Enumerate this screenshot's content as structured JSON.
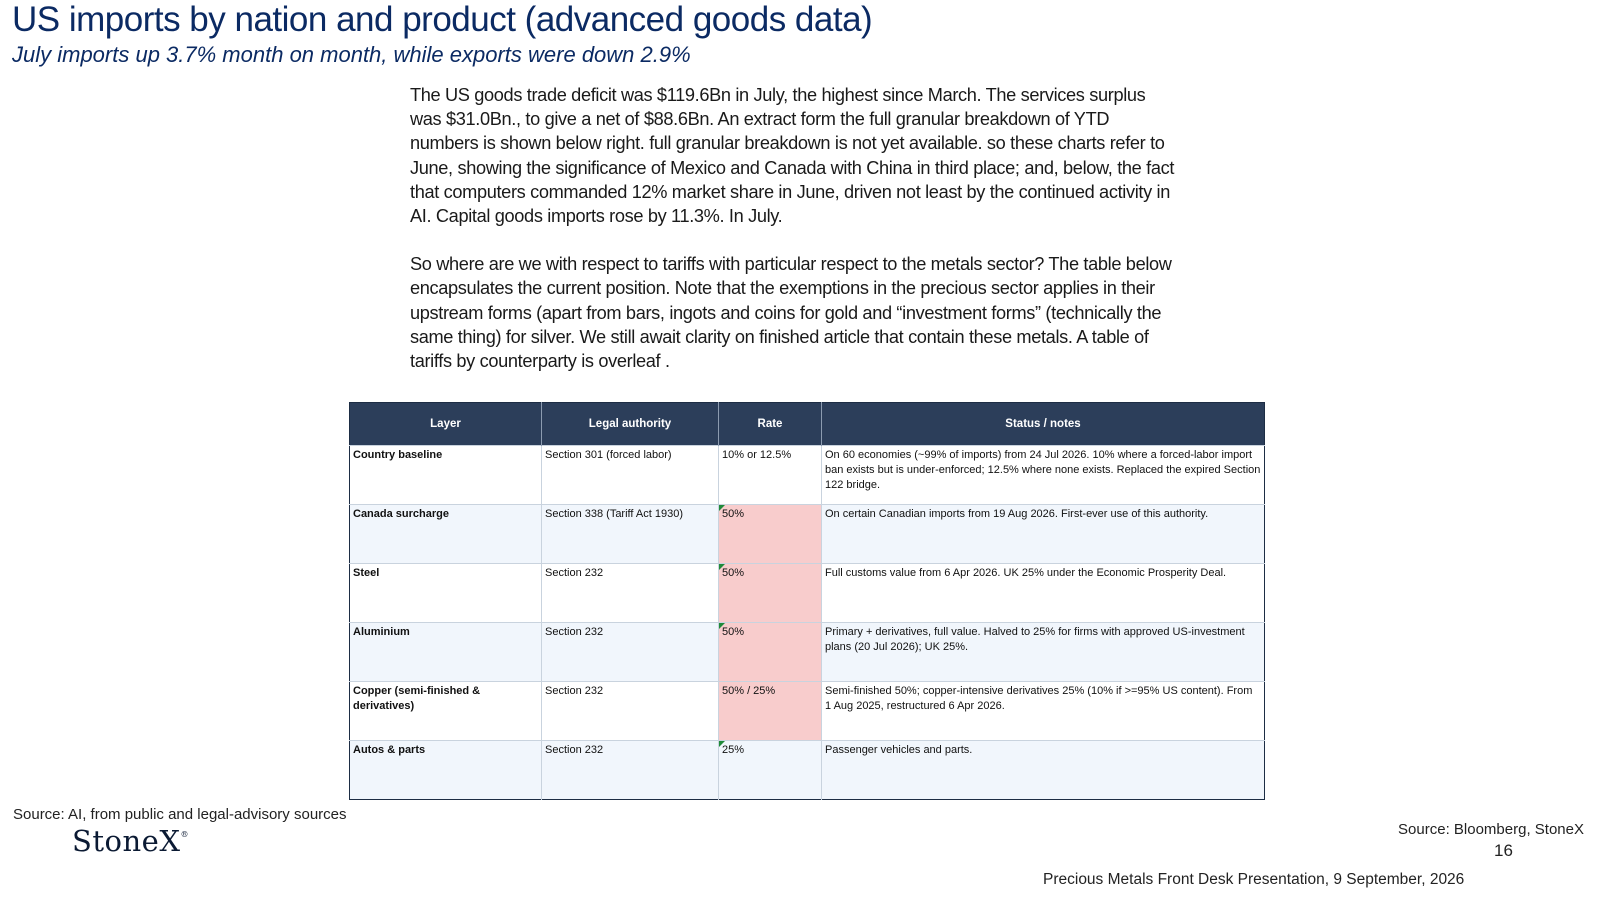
{
  "slide": {
    "title": "US imports by nation and product (advanced goods data)",
    "subtitle": "July imports up 3.7% month on month, while exports were down 2.9%",
    "paragraphs": [
      "The US goods trade deficit was $119.6Bn in July, the highest since March.   The services surplus was $31.0Bn., to give a net of $88.6Bn. An extract form the full granular breakdown of YTD numbers is shown below right. full granular breakdown is not yet available. so these charts refer to June, showing the significance of Mexico and Canada with China in third place; and, below, the fact that computers commanded 12% market share in June, driven not least by the continued activity in AI.  Capital goods imports rose by 11.3%. In July.",
      "So where are we with respect to tariffs with particular respect to the metals sector? The table below encapsulates the current position.  Note that the exemptions in the precious sector applies in their upstream forms (apart from bars, ingots and coins for gold and “investment forms” (technically the same thing) for silver.  We still await clarity on finished article that contain these metals.   A table of tariffs by counterparty is overleaf ."
    ],
    "source_left": "Source: AI, from public and legal-advisory sources",
    "logo_text": "StoneX",
    "logo_mark": "®",
    "source_right": "Source: Bloomberg, StoneX",
    "page_number": "16",
    "footer": "Precious Metals Front Desk Presentation, 9 September, 2026"
  },
  "table": {
    "headers": [
      "Layer",
      "Legal authority",
      "Rate",
      "Status / notes"
    ],
    "rows": [
      {
        "layer": "Country baseline",
        "authority": "Section 301 (forced labor)",
        "rate": "10% or 12.5%",
        "notes": "On 60 economies (~99% of imports) from 24 Jul 2026. 10% where a forced-labor import ban exists but is under-enforced; 12.5% where none exists. Replaced the expired Section 122 bridge."
      },
      {
        "layer": "Canada surcharge",
        "authority": "Section 338 (Tariff Act 1930)",
        "rate": "50%",
        "notes": "On certain Canadian imports from 19 Aug 2026. First-ever use of this authority."
      },
      {
        "layer": "Steel",
        "authority": "Section 232",
        "rate": "50%",
        "notes": "Full customs value from 6 Apr 2026. UK 25% under the Economic Prosperity Deal."
      },
      {
        "layer": "Aluminium",
        "authority": "Section 232",
        "rate": "50%",
        "notes": "Primary + derivatives, full value. Halved to 25% for firms with approved US-investment plans (20 Jul 2026); UK 25%."
      },
      {
        "layer": "Copper (semi-finished & derivatives)",
        "authority": "Section 232",
        "rate": "50% / 25%",
        "notes": "Semi-finished 50%; copper-intensive derivatives 25% (10% if >=95% US content). From 1 Aug 2025, restructured 6 Apr 2026."
      },
      {
        "layer": "Autos & parts",
        "authority": "Section 232",
        "rate": "25%",
        "notes": "Passenger vehicles and parts."
      }
    ]
  },
  "colors": {
    "title": "#0b2a63",
    "header_bg": "#2c3e5a",
    "highlight": "#f8cccc",
    "alt_row": "#f1f6fc"
  }
}
